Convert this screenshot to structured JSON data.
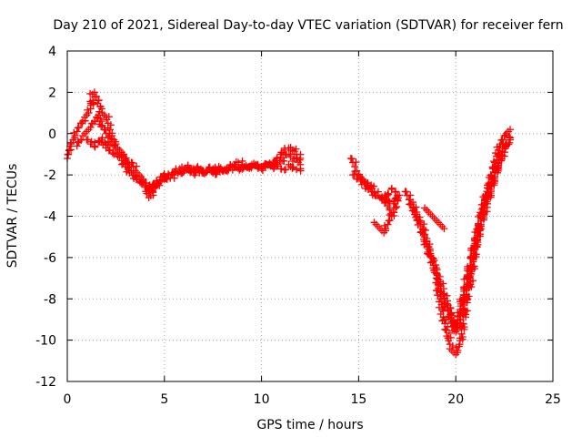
{
  "chart_data": {
    "type": "scatter",
    "title": "Day 210 of 2021, Sidereal Day-to-day VTEC variation (SDTVAR) for receiver fern",
    "xlabel": "GPS time / hours",
    "ylabel": "SDTVAR / TECUs",
    "xlim": [
      0,
      25
    ],
    "ylim": [
      -12,
      4
    ],
    "xticks": [
      0,
      5,
      10,
      15,
      20,
      25
    ],
    "yticks": [
      -12,
      -10,
      -8,
      -6,
      -4,
      -2,
      0,
      2,
      4
    ],
    "grid": true,
    "marker": "+",
    "color": "#ff0000",
    "series": [
      {
        "x": [
          0.0,
          0.05,
          0.1,
          0.15,
          0.2,
          0.3,
          0.4,
          0.5,
          0.6,
          0.7,
          0.8,
          0.9,
          1.0,
          1.1,
          1.2,
          1.3,
          1.4,
          1.5,
          1.6,
          1.7,
          1.8,
          1.9,
          2.0,
          2.1,
          2.2,
          2.3,
          2.4,
          2.5,
          2.6,
          2.7,
          2.8,
          2.9,
          3.0,
          3.1,
          3.2,
          3.3,
          3.4,
          3.5,
          3.6,
          3.7,
          3.8,
          3.9,
          4.0,
          4.1,
          4.2,
          4.3,
          4.4,
          4.5,
          4.6,
          4.7,
          4.8,
          4.9,
          5.0,
          5.2,
          5.4,
          5.6,
          5.8,
          6.0,
          6.2,
          6.4,
          6.6,
          6.8,
          7.0,
          7.2,
          7.4,
          7.6,
          7.8,
          8.0,
          8.2,
          8.4,
          8.6,
          8.8,
          9.0,
          9.2,
          9.4,
          9.6,
          9.8,
          10.0,
          10.2,
          10.4,
          10.6,
          10.8,
          11.0,
          11.2,
          11.4,
          11.6,
          11.8,
          12.0
        ],
        "y": [
          -1.2,
          -1.0,
          -0.8,
          -0.6,
          -0.5,
          -0.3,
          -0.1,
          0.1,
          0.3,
          0.5,
          0.6,
          0.8,
          0.9,
          1.0,
          1.2,
          1.9,
          2.0,
          1.8,
          1.6,
          1.3,
          1.0,
          0.9,
          0.8,
          0.5,
          0.2,
          -0.1,
          -0.3,
          -0.5,
          -0.7,
          -0.8,
          -0.9,
          -1.0,
          -1.2,
          -1.4,
          -1.5,
          -1.4,
          -1.6,
          -1.8,
          -1.9,
          -2.0,
          -2.1,
          -2.3,
          -2.5,
          -2.9,
          -3.1,
          -3.0,
          -2.8,
          -2.6,
          -2.5,
          -2.4,
          -2.3,
          -2.2,
          -2.2,
          -2.0,
          -1.9,
          -1.8,
          -1.7,
          -1.7,
          -1.6,
          -1.7,
          -1.8,
          -1.9,
          -1.9,
          -1.8,
          -1.8,
          -1.7,
          -1.6,
          -1.8,
          -1.7,
          -1.6,
          -1.5,
          -1.4,
          -1.5,
          -1.6,
          -1.6,
          -1.5,
          -1.6,
          -1.7,
          -1.6,
          -1.5,
          -1.4,
          -1.2,
          -1.0,
          -0.8,
          -0.7,
          -0.8,
          -1.0,
          -1.2
        ]
      },
      {
        "x": [
          0.5,
          0.6,
          0.7,
          0.8,
          0.9,
          1.0,
          1.1,
          1.2,
          1.3,
          1.4,
          1.5,
          1.6,
          1.7,
          1.8,
          1.9,
          2.0,
          2.1,
          2.2,
          2.3,
          2.4,
          2.5,
          2.6,
          2.7,
          2.8,
          2.9,
          3.0,
          3.1,
          3.2,
          3.3,
          3.4,
          3.5,
          3.6,
          3.7,
          3.8,
          3.9,
          4.0,
          4.2,
          4.4,
          4.6,
          4.8,
          5.0,
          5.5,
          6.0,
          6.5,
          7.0,
          7.5,
          8.0,
          8.5,
          9.0,
          9.5,
          10.0,
          10.5,
          11.0,
          11.5,
          12.0
        ],
        "y": [
          -0.6,
          -0.4,
          -0.3,
          -0.1,
          0.0,
          0.1,
          0.2,
          0.3,
          0.5,
          0.6,
          0.8,
          0.9,
          0.7,
          0.4,
          0.2,
          0.0,
          -0.2,
          -0.4,
          -0.5,
          -0.6,
          -0.7,
          -0.8,
          -0.9,
          -1.0,
          -1.1,
          -1.3,
          -1.5,
          -1.6,
          -1.8,
          -1.9,
          -2.0,
          -2.1,
          -2.2,
          -2.1,
          -2.3,
          -2.4,
          -2.6,
          -2.8,
          -2.5,
          -2.3,
          -2.2,
          -2.0,
          -1.8,
          -1.7,
          -1.8,
          -1.9,
          -1.8,
          -1.6,
          -1.6,
          -1.5,
          -1.6,
          -1.5,
          -1.3,
          -1.0,
          -1.5
        ]
      },
      {
        "x": [
          1.0,
          1.2,
          1.4,
          1.6,
          1.8,
          2.0,
          2.2,
          2.4,
          2.6,
          2.8,
          3.0,
          3.2,
          3.4,
          3.6,
          3.8,
          4.0,
          4.2,
          4.4,
          4.6,
          4.8,
          5.0,
          5.5,
          6.0,
          6.5,
          7.0,
          7.5,
          8.0,
          8.5,
          9.0,
          9.5,
          10.0,
          10.5,
          11.0,
          11.5,
          12.0
        ],
        "y": [
          -0.3,
          -0.5,
          -0.6,
          -0.4,
          -0.2,
          -0.5,
          -0.8,
          -1.0,
          -1.1,
          -1.3,
          -1.6,
          -1.8,
          -2.0,
          -2.2,
          -2.4,
          -2.6,
          -2.7,
          -2.5,
          -2.3,
          -2.1,
          -2.0,
          -1.9,
          -1.8,
          -1.9,
          -1.8,
          -1.7,
          -1.8,
          -1.6,
          -1.7,
          -1.6,
          -1.7,
          -1.5,
          -1.7,
          -1.6,
          -1.7
        ]
      },
      {
        "x": [
          14.6,
          14.7,
          14.8,
          14.9,
          15.0,
          15.1,
          15.2,
          15.4,
          15.6,
          15.8,
          16.0,
          16.2,
          16.4,
          16.6,
          16.8,
          17.0,
          16.9,
          16.8,
          16.7,
          16.6,
          16.5,
          16.4
        ],
        "y": [
          -1.2,
          -1.4,
          -1.6,
          -1.8,
          -2.0,
          -2.1,
          -2.2,
          -2.4,
          -2.6,
          -2.8,
          -3.0,
          -3.1,
          -3.2,
          -3.3,
          -3.4,
          -3.0,
          -3.6,
          -3.8,
          -4.0,
          -3.7,
          -3.5,
          -3.3
        ]
      },
      {
        "x": [
          14.7,
          14.9,
          15.1,
          15.3,
          15.5,
          15.7,
          15.9,
          16.1,
          16.3,
          16.5,
          16.7,
          16.9
        ],
        "y": [
          -2.0,
          -2.2,
          -2.3,
          -2.4,
          -2.6,
          -2.8,
          -3.0,
          -3.1,
          -3.2,
          -2.9,
          -2.7,
          -2.8
        ]
      },
      {
        "x": [
          15.8,
          15.9,
          16.0,
          16.1,
          16.2,
          16.3,
          16.4,
          16.5,
          16.6
        ],
        "y": [
          -4.3,
          -4.4,
          -4.5,
          -4.6,
          -4.7,
          -4.8,
          -4.6,
          -4.4,
          -4.2
        ]
      },
      {
        "x": [
          17.4,
          17.5,
          17.6,
          17.7,
          17.8,
          17.9,
          18.0,
          18.1,
          18.2,
          18.3,
          18.4,
          18.5,
          18.6,
          18.7,
          18.8,
          18.9,
          19.0,
          19.1,
          19.2,
          19.3,
          19.4,
          19.5,
          19.6,
          19.7,
          19.8,
          19.9,
          20.0,
          20.1,
          20.2,
          20.3,
          20.4,
          20.5,
          20.6,
          20.7,
          20.8,
          20.9,
          21.0,
          21.1,
          21.2,
          21.3,
          21.4,
          21.5,
          21.6,
          21.7,
          21.8,
          21.9,
          22.0,
          22.1,
          22.2,
          22.3,
          22.4,
          22.5,
          22.6,
          22.7,
          22.8
        ],
        "y": [
          -2.8,
          -3.0,
          -3.2,
          -3.4,
          -3.6,
          -3.8,
          -4.0,
          -4.2,
          -4.4,
          -4.6,
          -4.9,
          -5.2,
          -5.5,
          -5.8,
          -6.2,
          -6.6,
          -7.0,
          -7.5,
          -8.0,
          -8.5,
          -9.0,
          -9.5,
          -9.9,
          -10.2,
          -10.5,
          -10.6,
          -10.7,
          -10.5,
          -10.2,
          -9.7,
          -9.2,
          -8.6,
          -8.0,
          -7.4,
          -6.8,
          -6.2,
          -5.6,
          -5.0,
          -4.5,
          -4.0,
          -3.6,
          -3.2,
          -2.8,
          -2.4,
          -2.0,
          -1.7,
          -1.4,
          -1.1,
          -0.8,
          -0.5,
          -0.3,
          -0.1,
          0.0,
          0.1,
          0.2
        ]
      },
      {
        "x": [
          17.6,
          17.8,
          18.0,
          18.2,
          18.4,
          18.6,
          18.8,
          19.0,
          19.2,
          19.4,
          19.6,
          19.8,
          20.0,
          20.2,
          20.4,
          20.6,
          20.8,
          21.0,
          21.2,
          21.4,
          21.6,
          21.8,
          22.0,
          22.2,
          22.4,
          22.6,
          22.8
        ],
        "y": [
          -3.2,
          -3.6,
          -4.0,
          -4.5,
          -5.0,
          -5.6,
          -6.2,
          -6.8,
          -7.3,
          -7.8,
          -8.3,
          -8.8,
          -9.6,
          -9.0,
          -8.2,
          -7.3,
          -6.4,
          -5.5,
          -4.7,
          -4.0,
          -3.3,
          -2.7,
          -2.1,
          -1.6,
          -1.1,
          -0.6,
          -0.2
        ]
      },
      {
        "x": [
          18.4,
          18.5,
          18.6,
          18.7,
          18.8,
          18.9,
          19.0,
          19.1,
          19.2,
          19.3,
          19.4
        ],
        "y": [
          -3.6,
          -3.7,
          -3.8,
          -3.9,
          -4.0,
          -4.1,
          -4.2,
          -4.3,
          -4.4,
          -4.5,
          -4.6
        ]
      },
      {
        "x": [
          19.0,
          19.2,
          19.4,
          19.6,
          19.8,
          20.0,
          20.2,
          20.4,
          20.6,
          20.8,
          21.0,
          21.2,
          21.4,
          21.6,
          21.8,
          22.0,
          22.2,
          22.4,
          22.6,
          22.8
        ],
        "y": [
          -7.6,
          -7.8,
          -8.2,
          -8.6,
          -9.0,
          -9.4,
          -8.8,
          -7.8,
          -6.9,
          -6.0,
          -5.2,
          -4.5,
          -3.8,
          -3.1,
          -2.5,
          -1.9,
          -1.4,
          -0.9,
          -0.5,
          -0.3
        ]
      }
    ]
  }
}
